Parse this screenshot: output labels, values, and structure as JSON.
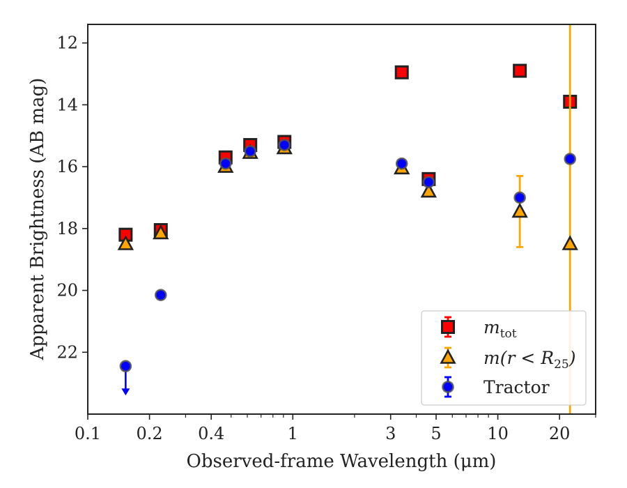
{
  "chart_data": {
    "type": "scatter",
    "x_scale": "log",
    "y_inverted": true,
    "xlim": [
      0.1,
      30
    ],
    "ylim": [
      24.0,
      11.4
    ],
    "xlabel": "Observed-frame Wavelength (μm)",
    "ylabel": "Apparent Brightness (AB mag)",
    "x_tick_values": [
      0.1,
      0.2,
      0.4,
      1,
      3,
      5,
      10,
      20
    ],
    "x_tick_labels": [
      "0.1",
      "0.2",
      "0.4",
      "1",
      "3",
      "5",
      "10",
      "20"
    ],
    "y_tick_values": [
      12,
      14,
      16,
      18,
      20,
      22
    ],
    "y_tick_labels": [
      "12",
      "14",
      "16",
      "18",
      "20",
      "22"
    ],
    "grid": false,
    "legend_position": "lower-right",
    "series": [
      {
        "name": "m_tot",
        "legend_label": "m",
        "legend_sub": "tot",
        "marker": "square",
        "color": "#ff0000",
        "edgecolor": "#222222",
        "errcolor": "#ff0000",
        "points": [
          {
            "x": 0.153,
            "y": 18.2,
            "err": 0.15
          },
          {
            "x": 0.227,
            "y": 18.05,
            "err": 0.12
          },
          {
            "x": 0.47,
            "y": 15.7,
            "err": 0.05
          },
          {
            "x": 0.62,
            "y": 15.3,
            "err": 0.05
          },
          {
            "x": 0.91,
            "y": 15.2,
            "err": 0.05
          },
          {
            "x": 3.4,
            "y": 12.95,
            "err": 0.05
          },
          {
            "x": 4.6,
            "y": 16.4,
            "err": 0.05
          },
          {
            "x": 12.8,
            "y": 12.9,
            "err": 0.05
          },
          {
            "x": 22.5,
            "y": 13.9,
            "err": 0.05
          }
        ]
      },
      {
        "name": "m(r<R_25)",
        "legend_label": "m(r < R",
        "legend_sub": "25",
        "legend_tail": ")",
        "marker": "triangle",
        "color": "#ffa500",
        "edgecolor": "#222222",
        "errcolor": "#ffa500",
        "points": [
          {
            "x": 0.153,
            "y": 18.5,
            "err": 0.05
          },
          {
            "x": 0.227,
            "y": 18.15,
            "err": 0.05
          },
          {
            "x": 0.47,
            "y": 16.0,
            "err": 0.05
          },
          {
            "x": 0.62,
            "y": 15.55,
            "err": 0.05
          },
          {
            "x": 0.91,
            "y": 15.4,
            "err": 0.05
          },
          {
            "x": 3.4,
            "y": 16.05,
            "err": 0.05
          },
          {
            "x": 4.6,
            "y": 16.8,
            "err": 0.05
          },
          {
            "x": 12.8,
            "y": 17.45,
            "err": 1.15
          },
          {
            "x": 22.5,
            "y": 18.5,
            "err": 30
          }
        ]
      },
      {
        "name": "Tractor",
        "legend_label": "Tractor",
        "marker": "circle",
        "color": "#0000ff",
        "edgecolor": "#555555",
        "errcolor": "#0000ff",
        "points": [
          {
            "x": 0.153,
            "y": 22.45,
            "upper_limit": true
          },
          {
            "x": 0.227,
            "y": 20.15,
            "err": 0.1
          },
          {
            "x": 0.47,
            "y": 15.9,
            "err": 0.05
          },
          {
            "x": 0.62,
            "y": 15.5,
            "err": 0.05
          },
          {
            "x": 0.91,
            "y": 15.3,
            "err": 0.05
          },
          {
            "x": 3.4,
            "y": 15.9,
            "err": 0.05
          },
          {
            "x": 4.6,
            "y": 16.5,
            "err": 0.05
          },
          {
            "x": 12.8,
            "y": 17.0,
            "err": 0.05
          },
          {
            "x": 22.5,
            "y": 15.75,
            "err": 0.05
          }
        ]
      }
    ]
  }
}
